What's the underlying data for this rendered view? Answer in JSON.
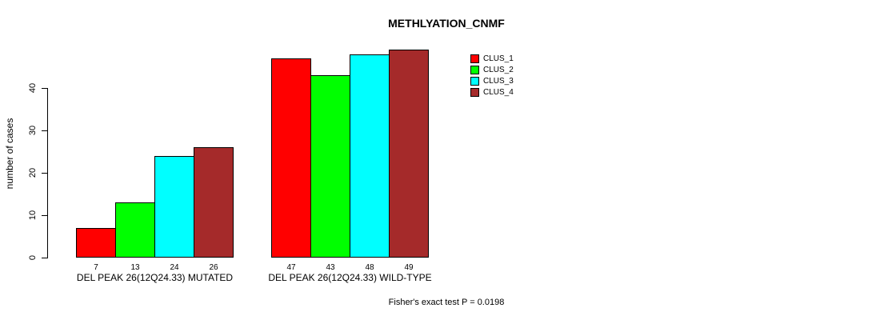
{
  "chart_data": {
    "type": "bar",
    "title": "METHLYATION_CNMF",
    "ylabel": "number of cases",
    "yticks": [
      0,
      10,
      20,
      30,
      40
    ],
    "ylim": [
      0,
      40
    ],
    "grid": false,
    "legend_position": "top-right",
    "categories": [
      "DEL PEAK 26(12Q24.33) MUTATED",
      "DEL PEAK 26(12Q24.33) WILD-TYPE"
    ],
    "series": [
      {
        "name": "CLUS_1",
        "color": "#FF0000",
        "values": [
          7,
          47
        ]
      },
      {
        "name": "CLUS_2",
        "color": "#00FF00",
        "values": [
          13,
          43
        ]
      },
      {
        "name": "CLUS_3",
        "color": "#00FFFF",
        "values": [
          24,
          48
        ]
      },
      {
        "name": "CLUS_4",
        "color": "#A52A2A",
        "values": [
          26,
          49
        ]
      }
    ],
    "bar_value_labels_shown": true,
    "footnote": "Fisher's exact test P = 0.0198"
  }
}
